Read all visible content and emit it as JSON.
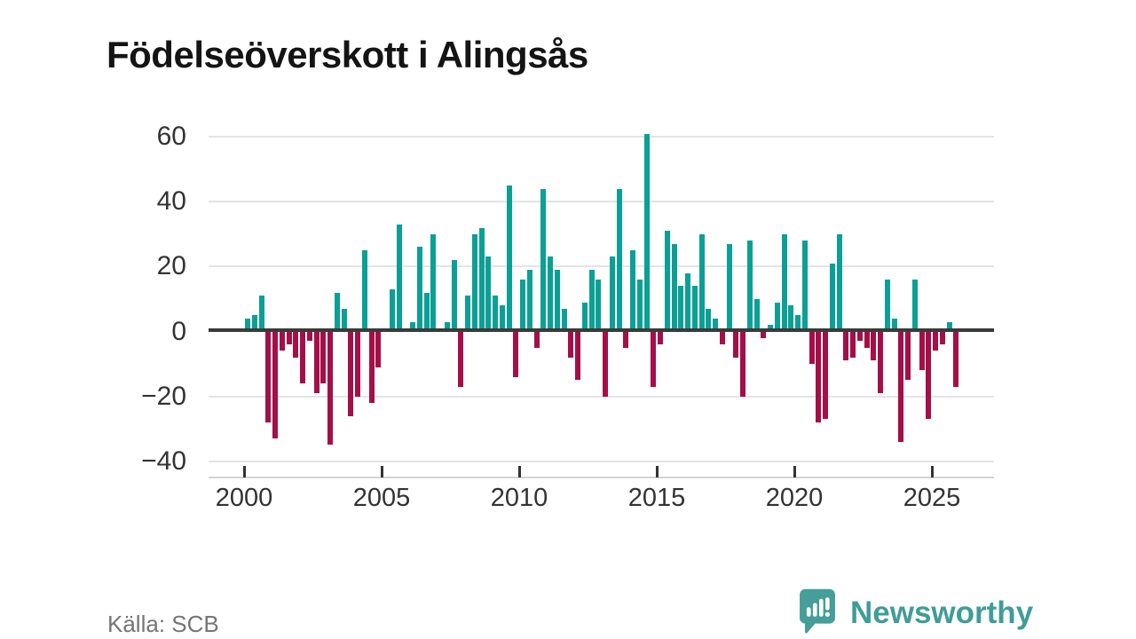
{
  "title": "Födelseöverskott i Alingsås",
  "source": "Källa: SCB",
  "branding": {
    "name": "Newsworthy",
    "logo_icon": "speech-bubble-bar-chart",
    "color": "#3f9d97"
  },
  "chart_data": {
    "type": "bar",
    "title": "Födelseöverskott i Alingsås",
    "frequency": "quarterly",
    "xlabel": "",
    "ylabel": "",
    "ylim": [
      -40,
      65
    ],
    "grid": true,
    "legend": false,
    "colors": {
      "positive": "#0aa096",
      "negative": "#a50f48"
    },
    "y_ticks": [
      {
        "value": 60,
        "label": "60"
      },
      {
        "value": 40,
        "label": "40"
      },
      {
        "value": 20,
        "label": "20"
      },
      {
        "value": 0,
        "label": "0"
      },
      {
        "value": -20,
        "label": "−20"
      },
      {
        "value": -40,
        "label": "−40"
      }
    ],
    "x_ticks": [
      {
        "year": 2000,
        "label": "2000"
      },
      {
        "year": 2005,
        "label": "2005"
      },
      {
        "year": 2010,
        "label": "2010"
      },
      {
        "year": 2015,
        "label": "2015"
      },
      {
        "year": 2020,
        "label": "2020"
      },
      {
        "year": 2025,
        "label": "2025"
      }
    ],
    "years": [
      {
        "year": 2000,
        "values": [
          4,
          5,
          11,
          -28
        ]
      },
      {
        "year": 2001,
        "values": [
          -33,
          -6,
          -4,
          -8
        ]
      },
      {
        "year": 2002,
        "values": [
          -16,
          -3,
          -19,
          -16
        ]
      },
      {
        "year": 2003,
        "values": [
          -35,
          12,
          7,
          -26
        ]
      },
      {
        "year": 2004,
        "values": [
          -20,
          25,
          -22,
          -11
        ]
      },
      {
        "year": 2005,
        "values": [
          0,
          13,
          33,
          0
        ]
      },
      {
        "year": 2006,
        "values": [
          3,
          26,
          12,
          30
        ]
      },
      {
        "year": 2007,
        "values": [
          1,
          3,
          22,
          -17
        ]
      },
      {
        "year": 2008,
        "values": [
          11,
          30,
          32,
          23
        ]
      },
      {
        "year": 2009,
        "values": [
          11,
          8,
          45,
          -14
        ]
      },
      {
        "year": 2010,
        "values": [
          16,
          19,
          -5,
          44
        ]
      },
      {
        "year": 2011,
        "values": [
          23,
          19,
          7,
          -8
        ]
      },
      {
        "year": 2012,
        "values": [
          -15,
          9,
          19,
          16
        ]
      },
      {
        "year": 2013,
        "values": [
          -20,
          23,
          44,
          -5
        ]
      },
      {
        "year": 2014,
        "values": [
          25,
          16,
          61,
          -17
        ]
      },
      {
        "year": 2015,
        "values": [
          -4,
          31,
          27,
          14
        ]
      },
      {
        "year": 2016,
        "values": [
          18,
          14,
          30,
          7
        ]
      },
      {
        "year": 2017,
        "values": [
          4,
          -4,
          27,
          -8
        ]
      },
      {
        "year": 2018,
        "values": [
          -20,
          28,
          10,
          -2
        ]
      },
      {
        "year": 2019,
        "values": [
          2,
          9,
          30,
          8
        ]
      },
      {
        "year": 2020,
        "values": [
          5,
          28,
          -10,
          -28
        ]
      },
      {
        "year": 2021,
        "values": [
          -27,
          21,
          30,
          -9
        ]
      },
      {
        "year": 2022,
        "values": [
          -8,
          -3,
          -5,
          -9
        ]
      },
      {
        "year": 2023,
        "values": [
          -19,
          16,
          4,
          -34
        ]
      },
      {
        "year": 2024,
        "values": [
          -15,
          16,
          -12,
          -27
        ]
      },
      {
        "year": 2025,
        "values": [
          -6,
          -4,
          3,
          -17
        ]
      }
    ]
  }
}
